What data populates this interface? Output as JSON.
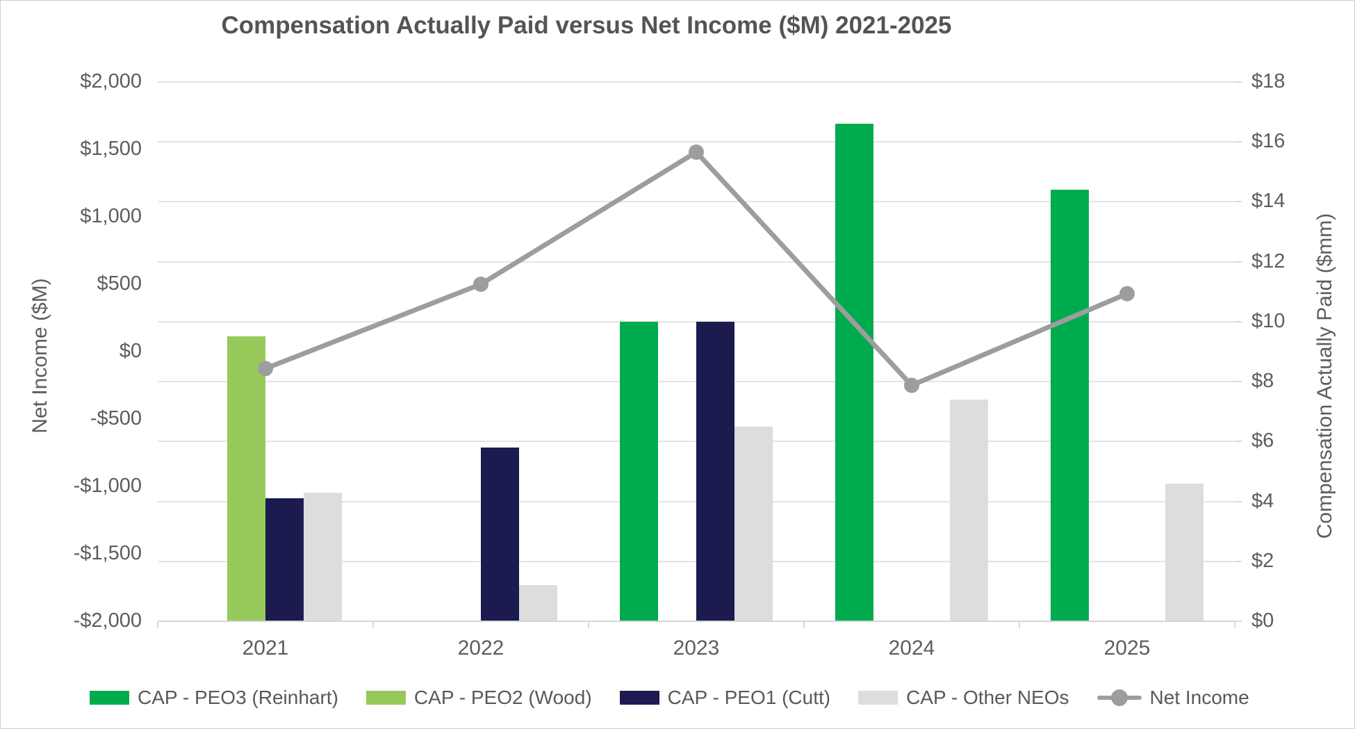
{
  "title": "Compensation Actually Paid versus Net Income ($M) 2021-2025",
  "chart_data": {
    "type": "combo bar+line",
    "categories": [
      "2021",
      "2022",
      "2023",
      "2024",
      "2025"
    ],
    "series": [
      {
        "name": "CAP - PEO3 (Reinhart)",
        "kind": "bar",
        "axis": "right",
        "color": "#00AB4E",
        "values": [
          0,
          0,
          10.0,
          16.6,
          14.4
        ]
      },
      {
        "name": "CAP - PEO2 (Wood)",
        "kind": "bar",
        "axis": "right",
        "color": "#96C95A",
        "values": [
          9.5,
          0,
          0,
          0,
          0
        ]
      },
      {
        "name": "CAP - PEO1 (Cutt)",
        "kind": "bar",
        "axis": "right",
        "color": "#1B1B4F",
        "values": [
          4.1,
          5.8,
          10.0,
          0,
          0
        ]
      },
      {
        "name": "CAP - Other NEOs",
        "kind": "bar",
        "axis": "right",
        "color": "#DDDDDE",
        "values": [
          4.3,
          1.2,
          6.5,
          7.4,
          4.6
        ]
      },
      {
        "name": "Net Income",
        "kind": "line",
        "axis": "left",
        "color": "#9D9D9D",
        "values": [
          -125,
          500,
          1480,
          -250,
          430
        ]
      }
    ],
    "left_axis": {
      "title": "Net Income ($M)",
      "min": -2000,
      "max": 2000,
      "step": 500,
      "ticks": [
        "$2,000",
        "$1,500",
        "$1,000",
        "$500",
        "$0",
        "-$500",
        "-$1,000",
        "-$1,500",
        "-$2,000"
      ]
    },
    "right_axis": {
      "title": "Compensation Actually Paid ($mm)",
      "min": 0,
      "max": 18,
      "step": 2,
      "ticks": [
        "$18",
        "$16",
        "$14",
        "$12",
        "$10",
        "$8",
        "$6",
        "$4",
        "$2",
        "$0"
      ]
    },
    "legend_position": "bottom",
    "gridlines": "horizontal, aligned to right-axis $2 steps"
  }
}
